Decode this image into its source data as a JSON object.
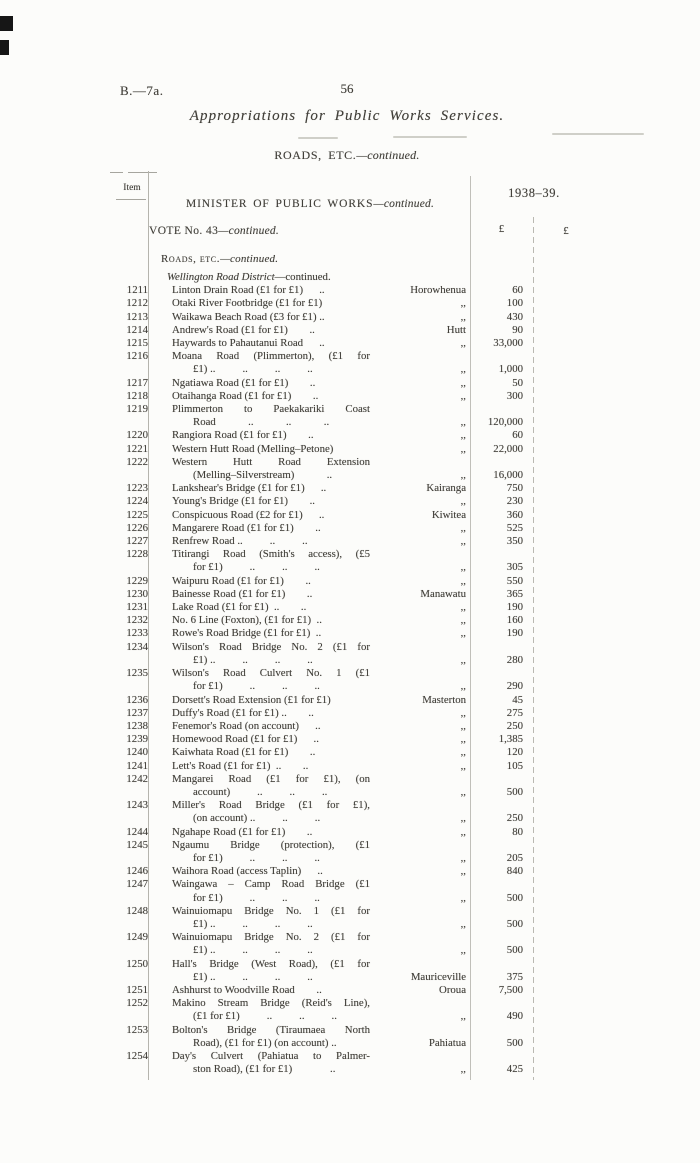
{
  "colors": {
    "ink": "#403e38",
    "rule": "#b5b4ad",
    "paper": "#fcfcfa",
    "edge_mark": "#161616"
  },
  "page": {
    "doc_ref": "B.—7a.",
    "page_number": "56",
    "title": "Appropriations for Public Works Services.",
    "section_heading": "ROADS, ETC.",
    "section_continued": "—continued."
  },
  "table": {
    "item_header": "Item",
    "minister_heading": "MINISTER OF PUBLIC WORKS",
    "minister_continued": "—continued.",
    "year_header": "1938–39.",
    "vote_heading": "VOTE No. 43",
    "vote_continued": "—continued.",
    "currency_col1": "£",
    "currency_col2": "£",
    "roads_subheading": "Roads, etc.",
    "roads_continued": "—continued.",
    "district_heading": "Wellington Road District",
    "district_continued": "—continued.",
    "rows": [
      {
        "h": "Wellington Road District",
        "hc": "—continued."
      },
      {
        "item": "1211",
        "lines": [
          {
            "t": "Linton Drain Road (£1 for £1)      .."
          }
        ],
        "loc": "Horowhenua",
        "amt": "60"
      },
      {
        "item": "1212",
        "lines": [
          {
            "t": "Otaki River Footbridge (£1 for £1)"
          }
        ],
        "loc": ",,",
        "amt": "100"
      },
      {
        "item": "1213",
        "lines": [
          {
            "t": "Waikawa Beach Road (£3 for £1) .."
          }
        ],
        "loc": ",,",
        "amt": "430"
      },
      {
        "item": "1214",
        "lines": [
          {
            "t": "Andrew's Road (£1 for £1)        .."
          }
        ],
        "loc": "Hutt",
        "amt": "90"
      },
      {
        "item": "1215",
        "lines": [
          {
            "t": "Haywards to Pahautanui Road      .."
          }
        ],
        "loc": ",,",
        "amt": "33,000"
      },
      {
        "item": "1216",
        "lines": [
          {
            "t": "Moana Road (Plimmerton), (£1 for",
            "j": true
          },
          {
            "t": "£1) ..          ..          ..          ..",
            "i": true
          }
        ],
        "loc": ",,",
        "amt": "1,000"
      },
      {
        "item": "1217",
        "lines": [
          {
            "t": "Ngatiawa Road (£1 for £1)        .."
          }
        ],
        "loc": ",,",
        "amt": "50"
      },
      {
        "item": "1218",
        "lines": [
          {
            "t": "Otaihanga Road (£1 for £1)        .."
          }
        ],
        "loc": ",,",
        "amt": "300"
      },
      {
        "item": "1219",
        "lines": [
          {
            "t": "Plimmerton to Paekakariki Coast",
            "j": true
          },
          {
            "t": "Road            ..            ..            ..",
            "i": true
          }
        ],
        "loc": ",,",
        "amt": "120,000"
      },
      {
        "item": "1220",
        "lines": [
          {
            "t": "Rangiora Road (£1 for £1)        .."
          }
        ],
        "loc": ",,",
        "amt": "60"
      },
      {
        "item": "1221",
        "lines": [
          {
            "t": "Western Hutt Road (Melling–Petone)"
          }
        ],
        "loc": ",,",
        "amt": "22,000"
      },
      {
        "item": "1222",
        "lines": [
          {
            "t": "Western Hutt Road Extension",
            "j": true
          },
          {
            "t": "(Melling–Silverstream)            ..",
            "i": true
          }
        ],
        "loc": ",,",
        "amt": "16,000"
      },
      {
        "item": "1223",
        "lines": [
          {
            "t": "Lankshear's Bridge (£1 for £1)      .."
          }
        ],
        "loc": "Kairanga",
        "amt": "750"
      },
      {
        "item": "1224",
        "lines": [
          {
            "t": "Young's Bridge (£1 for £1)        .."
          }
        ],
        "loc": ",,",
        "amt": "230"
      },
      {
        "item": "1225",
        "lines": [
          {
            "t": "Conspicuous Road (£2 for £1)      .."
          }
        ],
        "loc": "Kiwitea",
        "amt": "360"
      },
      {
        "item": "1226",
        "lines": [
          {
            "t": "Mangarere Road (£1 for £1)        .."
          }
        ],
        "loc": ",,",
        "amt": "525"
      },
      {
        "item": "1227",
        "lines": [
          {
            "t": "Renfrew Road ..          ..          .."
          }
        ],
        "loc": ",,",
        "amt": "350"
      },
      {
        "item": "1228",
        "lines": [
          {
            "t": "Titirangi Road (Smith's access), (£5",
            "j": true
          },
          {
            "t": "for £1)          ..          ..          ..",
            "i": true
          }
        ],
        "loc": ",,",
        "amt": "305"
      },
      {
        "item": "1229",
        "lines": [
          {
            "t": "Waipuru Road (£1 for £1)        .."
          }
        ],
        "loc": ",,",
        "amt": "550"
      },
      {
        "item": "1230",
        "lines": [
          {
            "t": "Bainesse Road (£1 for £1)        .."
          }
        ],
        "loc": "Manawatu",
        "amt": "365"
      },
      {
        "item": "1231",
        "lines": [
          {
            "t": "Lake Road (£1 for £1)  ..        .."
          }
        ],
        "loc": ",,",
        "amt": "190"
      },
      {
        "item": "1232",
        "lines": [
          {
            "t": "No. 6 Line (Foxton), (£1 for £1)  .."
          }
        ],
        "loc": ",,",
        "amt": "160"
      },
      {
        "item": "1233",
        "lines": [
          {
            "t": "Rowe's Road Bridge (£1 for £1)  .."
          }
        ],
        "loc": ",,",
        "amt": "190"
      },
      {
        "item": "1234",
        "lines": [
          {
            "t": "Wilson's Road Bridge No. 2 (£1 for",
            "j": true
          },
          {
            "t": "£1) ..          ..          ..          ..",
            "i": true
          }
        ],
        "loc": ",,",
        "amt": "280"
      },
      {
        "item": "1235",
        "lines": [
          {
            "t": "Wilson's Road Culvert No. 1 (£1",
            "j": true
          },
          {
            "t": "for £1)          ..          ..          ..",
            "i": true
          }
        ],
        "loc": ",,",
        "amt": "290"
      },
      {
        "item": "1236",
        "lines": [
          {
            "t": "Dorsett's Road Extension (£1 for £1)"
          }
        ],
        "loc": "Masterton",
        "amt": "45"
      },
      {
        "item": "1237",
        "lines": [
          {
            "t": "Duffy's Road (£1 for £1) ..        .."
          }
        ],
        "loc": ",,",
        "amt": "275"
      },
      {
        "item": "1238",
        "lines": [
          {
            "t": "Fenemor's Road (on account)      .."
          }
        ],
        "loc": ",,",
        "amt": "250"
      },
      {
        "item": "1239",
        "lines": [
          {
            "t": "Homewood Road (£1 for £1)      .."
          }
        ],
        "loc": ",,",
        "amt": "1,385"
      },
      {
        "item": "1240",
        "lines": [
          {
            "t": "Kaiwhata Road (£1 for £1)        .."
          }
        ],
        "loc": ",,",
        "amt": "120"
      },
      {
        "item": "1241",
        "lines": [
          {
            "t": "Lett's Road (£1 for £1)  ..        .."
          }
        ],
        "loc": ",,",
        "amt": "105"
      },
      {
        "item": "1242",
        "lines": [
          {
            "t": "Mangarei Road (£1 for £1), (on",
            "j": true
          },
          {
            "t": "account)          ..          ..          ..",
            "i": true
          }
        ],
        "loc": ",,",
        "amt": "500"
      },
      {
        "item": "1243",
        "lines": [
          {
            "t": "Miller's Road Bridge (£1 for £1),",
            "j": true
          },
          {
            "t": "(on account) ..          ..          ..",
            "i": true
          }
        ],
        "loc": ",,",
        "amt": "250"
      },
      {
        "item": "1244",
        "lines": [
          {
            "t": "Ngahape Road (£1 for £1)        .."
          }
        ],
        "loc": ",,",
        "amt": "80"
      },
      {
        "item": "1245",
        "lines": [
          {
            "t": "Ngaumu Bridge (protection), (£1",
            "j": true
          },
          {
            "t": "for £1)          ..          ..          ..",
            "i": true
          }
        ],
        "loc": ",,",
        "amt": "205"
      },
      {
        "item": "1246",
        "lines": [
          {
            "t": "Waihora Road (access Taplin)      .."
          }
        ],
        "loc": ",,",
        "amt": "840"
      },
      {
        "item": "1247",
        "lines": [
          {
            "t": "Waingawa – Camp Road Bridge (£1",
            "j": true
          },
          {
            "t": "for £1)          ..          ..          ..",
            "i": true
          }
        ],
        "loc": ",,",
        "amt": "500"
      },
      {
        "item": "1248",
        "lines": [
          {
            "t": "Wainuiomapu Bridge No. 1 (£1 for",
            "j": true
          },
          {
            "t": "£1) ..          ..          ..          ..",
            "i": true
          }
        ],
        "loc": ",,",
        "amt": "500"
      },
      {
        "item": "1249",
        "lines": [
          {
            "t": "Wainuiomapu Bridge No. 2 (£1 for",
            "j": true
          },
          {
            "t": "£1) ..          ..          ..          ..",
            "i": true
          }
        ],
        "loc": ",,",
        "amt": "500"
      },
      {
        "item": "1250",
        "lines": [
          {
            "t": "Hall's Bridge (West Road), (£1 for",
            "j": true
          },
          {
            "t": "£1) ..          ..          ..          ..",
            "i": true
          }
        ],
        "loc": "Mauriceville",
        "amt": "375"
      },
      {
        "item": "1251",
        "lines": [
          {
            "t": "Ashhurst to Woodville Road        .."
          }
        ],
        "loc": "Oroua",
        "amt": "7,500"
      },
      {
        "item": "1252",
        "lines": [
          {
            "t": "Makino Stream Bridge (Reid's Line),",
            "j": true
          },
          {
            "t": "(£1 for £1)          ..          ..          ..",
            "i": true
          }
        ],
        "loc": ",,",
        "amt": "490"
      },
      {
        "item": "1253",
        "lines": [
          {
            "t": "Bolton's Bridge (Tiraumaea North",
            "j": true
          },
          {
            "t": "Road), (£1 for £1) (on account) ..",
            "i": true
          }
        ],
        "loc": "Pahiatua",
        "amt": "500"
      },
      {
        "item": "1254",
        "lines": [
          {
            "t": "Day's Culvert (Pahiatua to Palmer-",
            "j": true
          },
          {
            "t": "ston Road), (£1 for £1)              ..",
            "i": true
          }
        ],
        "loc": ",,",
        "amt": "425"
      }
    ]
  }
}
